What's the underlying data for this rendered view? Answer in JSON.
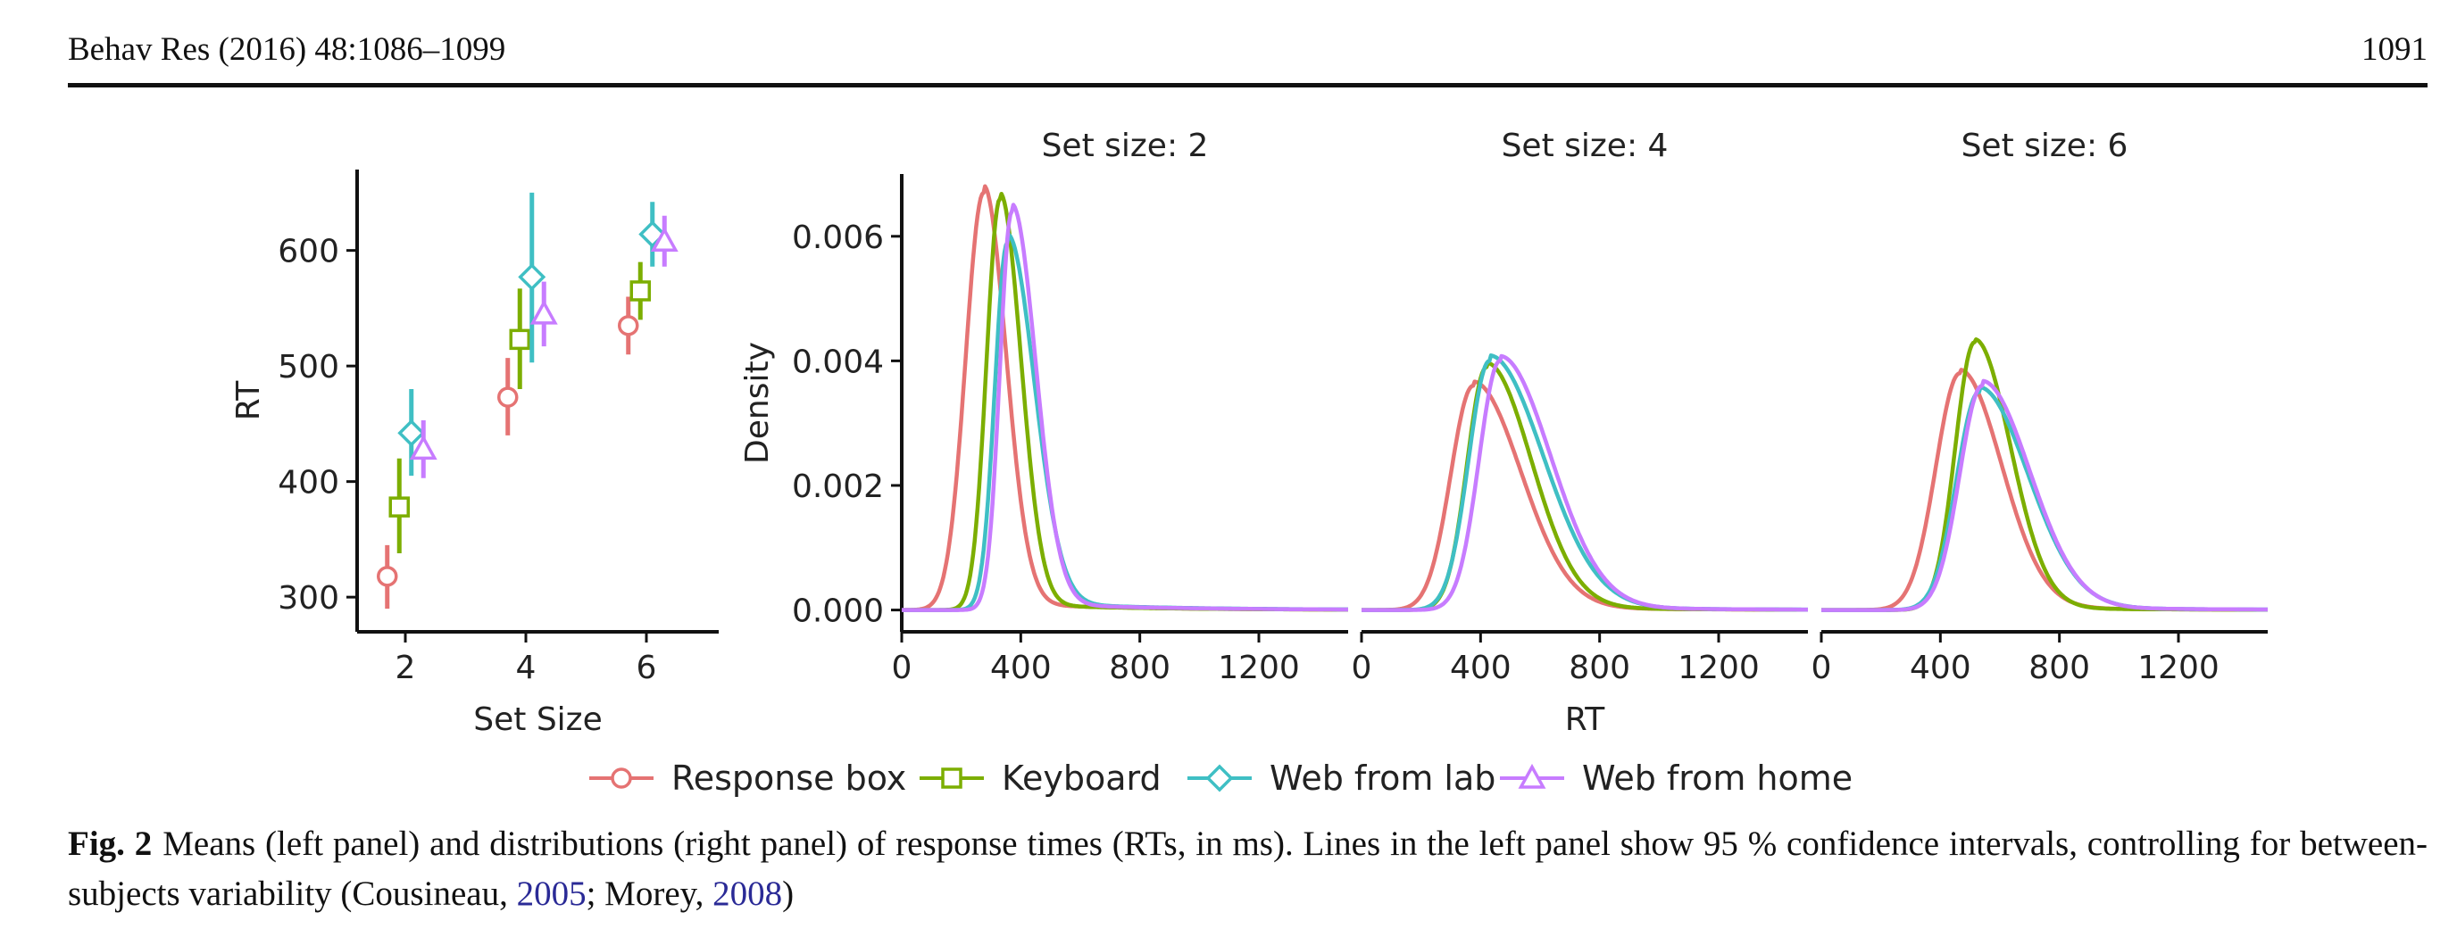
{
  "header": {
    "journal": "Behav Res  (2016) 48:1086–1099",
    "page_number": "1091"
  },
  "caption": {
    "label": "Fig. 2",
    "text_a": "Means (left panel) and distributions (right panel) of response times (RTs, in ms). Lines in the left panel show 95 % confidence intervals, controlling for between-subjects variability (Cousineau, ",
    "cite1": "2005",
    "text_b": "; Morey, ",
    "cite2": "2008",
    "text_c": ")"
  },
  "legend": {
    "placement": "bottom-center",
    "items": [
      {
        "name": "Response box",
        "color": "#e57373",
        "marker": "circle"
      },
      {
        "name": "Keyboard",
        "color": "#7cae00",
        "marker": "square"
      },
      {
        "name": "Web from lab",
        "color": "#3fbfc4",
        "marker": "diamond"
      },
      {
        "name": "Web from home",
        "color": "#c77cff",
        "marker": "triangle"
      }
    ]
  },
  "chart_data": [
    {
      "type": "scatter",
      "panel": "left",
      "xlabel": "Set Size",
      "ylabel": "RT",
      "xlim": [
        1.2,
        7.2
      ],
      "ylim": [
        270,
        670
      ],
      "xticks": [
        2,
        4,
        6
      ],
      "yticks": [
        300,
        400,
        500,
        600
      ],
      "grid": false,
      "series": [
        {
          "name": "Response box",
          "x": [
            2,
            4,
            6
          ],
          "y": [
            318,
            473,
            535
          ],
          "ci_low": [
            290,
            440,
            510
          ],
          "ci_high": [
            345,
            507,
            560
          ]
        },
        {
          "name": "Keyboard",
          "x": [
            2,
            4,
            6
          ],
          "y": [
            378,
            523,
            565
          ],
          "ci_low": [
            338,
            480,
            540
          ],
          "ci_high": [
            420,
            567,
            590
          ]
        },
        {
          "name": "Web from lab",
          "x": [
            2,
            4,
            6
          ],
          "y": [
            442,
            577,
            614
          ],
          "ci_low": [
            405,
            503,
            586
          ],
          "ci_high": [
            480,
            650,
            642
          ]
        },
        {
          "name": "Web from home",
          "x": [
            2,
            4,
            6
          ],
          "y": [
            428,
            545,
            608
          ],
          "ci_low": [
            403,
            517,
            586
          ],
          "ci_high": [
            453,
            573,
            630
          ]
        }
      ]
    },
    {
      "type": "line",
      "panel": "right",
      "xlabel": "RT",
      "ylabel": "Density",
      "xlim": [
        0,
        1500
      ],
      "ylim": [
        -0.00035,
        0.007
      ],
      "xticks": [
        0,
        400,
        800,
        1200
      ],
      "yticks": [
        0.0,
        0.002,
        0.004,
        0.006
      ],
      "ytick_labels": [
        "0.000",
        "0.002",
        "0.004",
        "0.006"
      ],
      "grid": false,
      "facets": [
        {
          "title": "Set size: 2",
          "series": [
            {
              "name": "Response box",
              "peak_x": 275,
              "peak_y": 0.0067,
              "width_left": 60,
              "width_right": 75,
              "tail": 0.00012
            },
            {
              "name": "Keyboard",
              "peak_x": 330,
              "peak_y": 0.0066,
              "width_left": 45,
              "width_right": 70,
              "tail": 0.0001
            },
            {
              "name": "Web from lab",
              "peak_x": 355,
              "peak_y": 0.0059,
              "width_left": 42,
              "width_right": 90,
              "tail": 0.00014
            },
            {
              "name": "Web from home",
              "peak_x": 370,
              "peak_y": 0.0064,
              "width_left": 40,
              "width_right": 80,
              "tail": 0.00012
            }
          ]
        },
        {
          "title": "Set size: 4",
          "series": [
            {
              "name": "Response box",
              "peak_x": 375,
              "peak_y": 0.0036,
              "width_left": 75,
              "width_right": 160,
              "tail": 7e-05
            },
            {
              "name": "Keyboard",
              "peak_x": 420,
              "peak_y": 0.0039,
              "width_left": 65,
              "width_right": 150,
              "tail": 7e-05
            },
            {
              "name": "Web from lab",
              "peak_x": 430,
              "peak_y": 0.004,
              "width_left": 70,
              "width_right": 180,
              "tail": 9e-05
            },
            {
              "name": "Web from home",
              "peak_x": 465,
              "peak_y": 0.004,
              "width_left": 70,
              "width_right": 170,
              "tail": 8e-05
            }
          ]
        },
        {
          "title": "Set size: 6",
          "series": [
            {
              "name": "Response box",
              "peak_x": 465,
              "peak_y": 0.0038,
              "width_left": 80,
              "width_right": 140,
              "tail": 6e-05
            },
            {
              "name": "Keyboard",
              "peak_x": 515,
              "peak_y": 0.0043,
              "width_left": 65,
              "width_right": 120,
              "tail": 5e-05
            },
            {
              "name": "Web from lab",
              "peak_x": 530,
              "peak_y": 0.0035,
              "width_left": 75,
              "width_right": 165,
              "tail": 8e-05
            },
            {
              "name": "Web from home",
              "peak_x": 540,
              "peak_y": 0.0036,
              "width_left": 75,
              "width_right": 160,
              "tail": 8e-05
            }
          ]
        }
      ]
    }
  ]
}
